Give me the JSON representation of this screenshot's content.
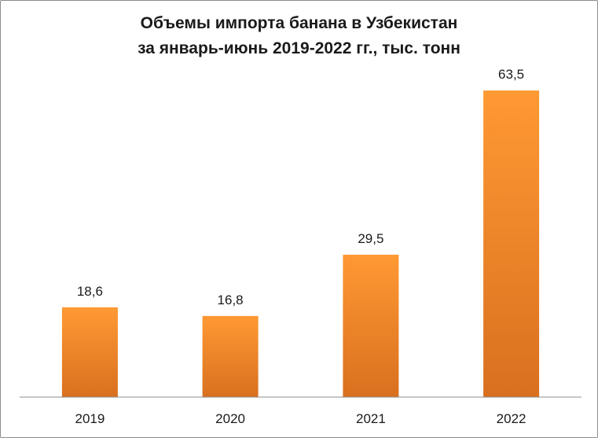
{
  "chart_data": {
    "type": "bar",
    "title": "Объемы импорта банана в Узбекистан",
    "subtitle": "за январь-июнь 2019-2022 гг., тыс. тонн",
    "categories": [
      "2019",
      "2020",
      "2021",
      "2022"
    ],
    "values": [
      18.6,
      16.8,
      29.5,
      63.5
    ],
    "value_labels": [
      "18,6",
      "16,8",
      "29,5",
      "63,5"
    ],
    "ylim": [
      0,
      70
    ],
    "grid": false,
    "legend": "none",
    "bar_color_top": "#ff9933",
    "bar_color_bottom": "#d8701f",
    "axis_color": "#8c8c8c"
  }
}
